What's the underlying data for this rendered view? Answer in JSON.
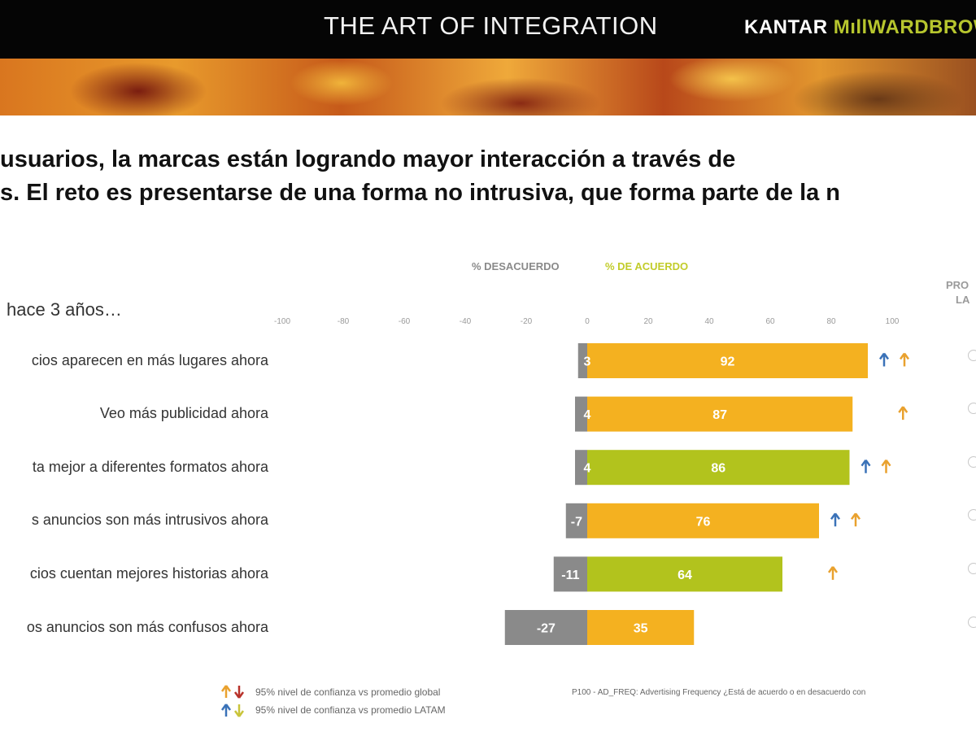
{
  "header": {
    "title": "THE ART OF INTEGRATION",
    "brand_part1": "KANTAR ",
    "brand_part2": "MıllWARDBROWN"
  },
  "headline": {
    "line1": "usuarios, la marcas están logrando mayor interacción a través de",
    "line2": "s. El reto es presentarse de una forma no intrusiva, que forma parte de la n"
  },
  "legend": {
    "disagree": "% DESACUERDO",
    "agree": "% DE ACUERDO"
  },
  "side_header": {
    "line1": "PRO",
    "line2": "LA"
  },
  "compare_text": "hace 3 años…",
  "footnote": {
    "global": "95% nivel de confianza vs promedio global",
    "latam": "95% nivel de confianza vs promedio LATAM",
    "question": "P100 - AD_FREQ: Advertising Frequency ¿Está de acuerdo o en desacuerdo con"
  },
  "colors": {
    "disagree": "#8a8a8a",
    "agree_orange": "#f4b120",
    "agree_green": "#b2c31d",
    "arrow_global": "#e9a12e",
    "arrow_global_down": "#b8322a",
    "arrow_latam": "#3a72b8",
    "arrow_latam_down": "#c9c43a"
  },
  "chart_data": {
    "type": "bar",
    "orientation": "horizontal",
    "stacked": "diverging",
    "xlim": [
      -100,
      100
    ],
    "x_ticks": [
      -100,
      -80,
      -60,
      -40,
      -20,
      0,
      20,
      40,
      60,
      80,
      100
    ],
    "categories": [
      "cios aparecen en más lugares ahora",
      "Veo más publicidad ahora",
      "ta mejor a diferentes formatos ahora",
      "s anuncios son más intrusivos ahora",
      "cios cuentan mejores historias ahora",
      "os anuncios son más confusos ahora"
    ],
    "series": [
      {
        "name": "% DESACUERDO",
        "values": [
          -3,
          -4,
          -4,
          -7,
          -11,
          -27
        ]
      },
      {
        "name": "% DE ACUERDO",
        "values": [
          92,
          87,
          86,
          76,
          64,
          35
        ]
      }
    ],
    "agree_colors": [
      "orange",
      "orange",
      "green",
      "orange",
      "green",
      "orange"
    ],
    "significance_arrows": [
      [
        "latam-up",
        "global-up"
      ],
      [
        "global-up"
      ],
      [
        "latam-up",
        "global-up"
      ],
      [
        "latam-up",
        "global-up"
      ],
      [
        "global-up"
      ],
      []
    ],
    "grid": false
  }
}
